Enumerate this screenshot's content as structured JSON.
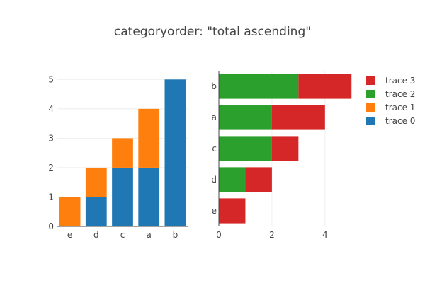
{
  "chart_data": {
    "title": "categoryorder: \"total ascending\"",
    "colors": {
      "trace 0": "#1f77b4",
      "trace 1": "#ff7f0e",
      "trace 2": "#2ca02c",
      "trace 3": "#d62728"
    },
    "legend": {
      "position": "top-right",
      "items": [
        "trace 3",
        "trace 2",
        "trace 1",
        "trace 0"
      ]
    },
    "charts": [
      {
        "type": "bar",
        "orientation": "vertical",
        "barmode": "stack",
        "categoryorder": "total ascending",
        "categories": [
          "e",
          "d",
          "c",
          "a",
          "b"
        ],
        "series": [
          {
            "name": "trace 0",
            "values": [
              0,
              1,
              2,
              2,
              5
            ]
          },
          {
            "name": "trace 1",
            "values": [
              1,
              1,
              1,
              2,
              0
            ]
          }
        ],
        "ylim": [
          0,
          5.2
        ],
        "yticks": [
          0,
          1,
          2,
          3,
          4,
          5
        ],
        "grid": true
      },
      {
        "type": "bar",
        "orientation": "horizontal",
        "barmode": "stack",
        "categoryorder": "total ascending",
        "categories": [
          "e",
          "d",
          "c",
          "a",
          "b"
        ],
        "series": [
          {
            "name": "trace 2",
            "values": [
              0,
              1,
              2,
              2,
              3
            ]
          },
          {
            "name": "trace 3",
            "values": [
              1,
              1,
              1,
              2,
              2
            ]
          }
        ],
        "xlim": [
          0,
          5.26
        ],
        "xticks": [
          0,
          2,
          4
        ],
        "grid": true
      }
    ]
  }
}
